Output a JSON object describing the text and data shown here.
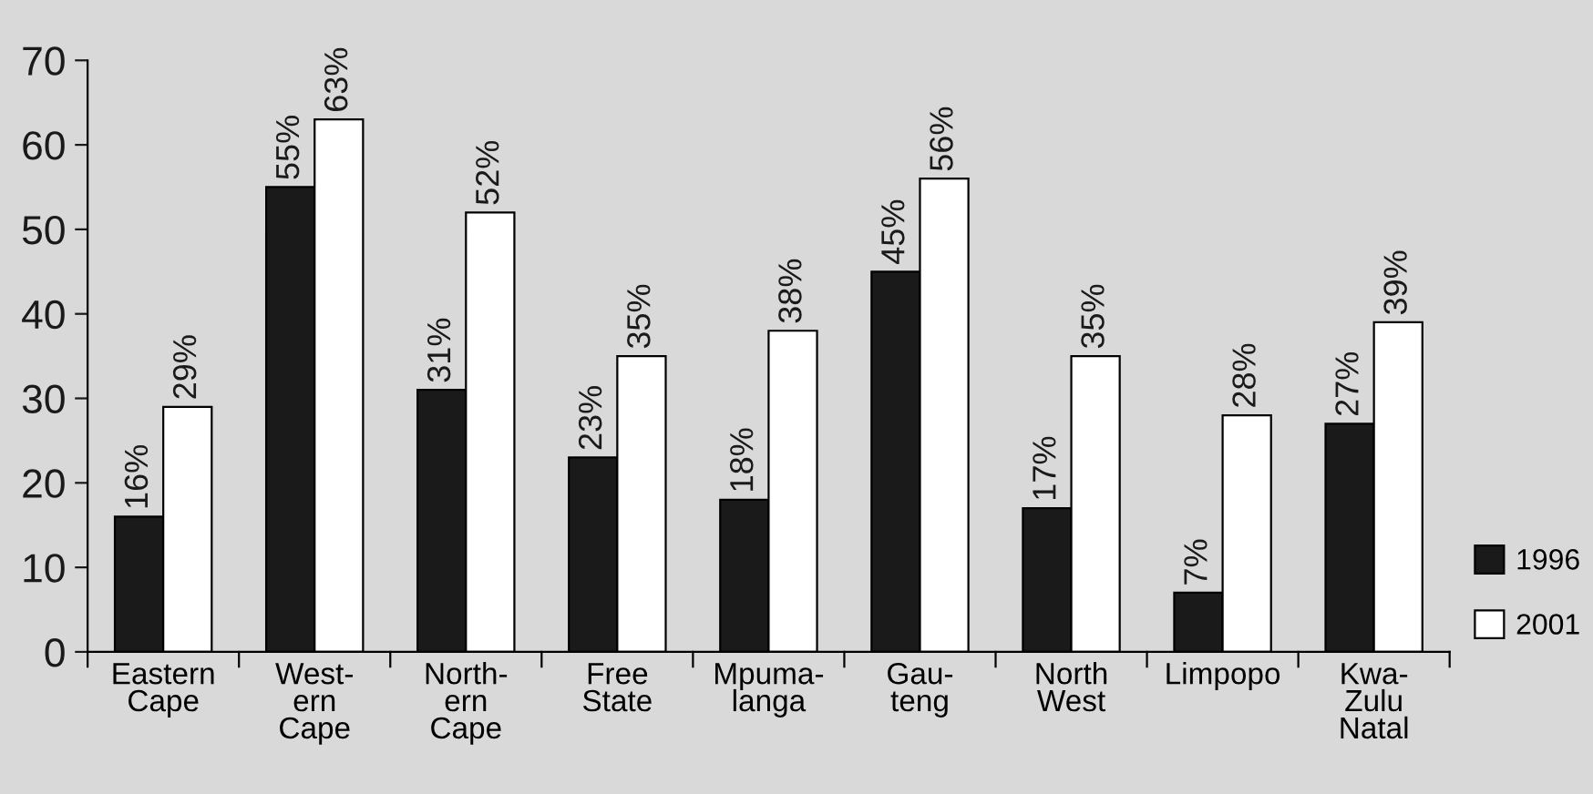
{
  "chart_data": {
    "type": "bar",
    "categories": [
      "Eastern\nCape",
      "West-\nern\nCape",
      "North-\nern\nCape",
      "Free\nState",
      "Mpuma-\nlanga",
      "Gau-\nteng",
      "North\nWest",
      "Limpopo",
      "Kwa-\nZulu\nNatal"
    ],
    "series": [
      {
        "name": "1996",
        "color": "#1a1a1a",
        "values": [
          16,
          55,
          31,
          23,
          18,
          45,
          17,
          7,
          27
        ],
        "value_labels": [
          "16%",
          "55%",
          "31%",
          "23%",
          "18%",
          "45%",
          "17%",
          "7%",
          "27%"
        ]
      },
      {
        "name": "2001",
        "color": "#ffffff",
        "values": [
          29,
          63,
          52,
          35,
          38,
          56,
          35,
          28,
          39
        ],
        "value_labels": [
          "29%",
          "63%",
          "52%",
          "35%",
          "38%",
          "56%",
          "35%",
          "28%",
          "39%"
        ]
      }
    ],
    "ylim": [
      0,
      70
    ],
    "yticks": [
      0,
      10,
      20,
      30,
      40,
      50,
      60,
      70
    ],
    "grid": false,
    "legend": "bottom right"
  }
}
